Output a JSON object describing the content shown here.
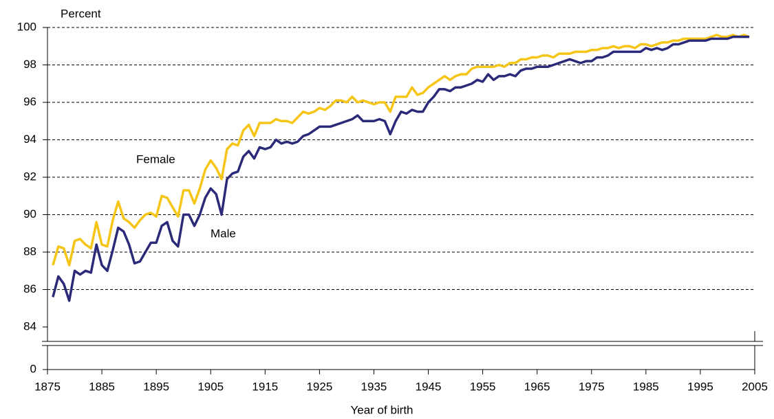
{
  "chart_data": {
    "type": "line",
    "y_axis_label": "Percent",
    "x_axis_label": "Year of birth",
    "x": [
      1876,
      1877,
      1878,
      1879,
      1880,
      1881,
      1882,
      1883,
      1884,
      1885,
      1886,
      1887,
      1888,
      1889,
      1890,
      1891,
      1892,
      1893,
      1894,
      1895,
      1896,
      1897,
      1898,
      1899,
      1900,
      1901,
      1902,
      1903,
      1904,
      1905,
      1906,
      1907,
      1908,
      1909,
      1910,
      1911,
      1912,
      1913,
      1914,
      1915,
      1916,
      1917,
      1918,
      1919,
      1920,
      1921,
      1922,
      1923,
      1924,
      1925,
      1926,
      1927,
      1928,
      1929,
      1930,
      1931,
      1932,
      1933,
      1934,
      1935,
      1936,
      1937,
      1938,
      1939,
      1940,
      1941,
      1942,
      1943,
      1944,
      1945,
      1946,
      1947,
      1948,
      1949,
      1950,
      1951,
      1952,
      1953,
      1954,
      1955,
      1956,
      1957,
      1958,
      1959,
      1960,
      1961,
      1962,
      1963,
      1964,
      1965,
      1966,
      1967,
      1968,
      1969,
      1970,
      1971,
      1972,
      1973,
      1974,
      1975,
      1976,
      1977,
      1978,
      1979,
      1980,
      1981,
      1982,
      1983,
      1984,
      1985,
      1986,
      1987,
      1988,
      1989,
      1990,
      1991,
      1992,
      1993,
      1994,
      1995,
      1996,
      1997,
      1998,
      1999,
      2000,
      2001,
      2002,
      2003,
      2004
    ],
    "series": [
      {
        "name": "Female",
        "color": "#f5c518",
        "values": [
          87.3,
          88.3,
          88.2,
          87.3,
          88.6,
          88.7,
          88.4,
          88.2,
          89.6,
          88.4,
          88.3,
          89.7,
          90.7,
          89.8,
          89.6,
          89.3,
          89.7,
          90.0,
          90.1,
          89.9,
          91.0,
          90.9,
          90.4,
          89.9,
          91.3,
          91.3,
          90.6,
          91.4,
          92.4,
          92.9,
          92.5,
          91.9,
          93.5,
          93.8,
          93.7,
          94.5,
          94.8,
          94.2,
          94.9,
          94.9,
          94.9,
          95.1,
          95.0,
          95.0,
          94.9,
          95.2,
          95.5,
          95.4,
          95.5,
          95.7,
          95.6,
          95.8,
          96.1,
          96.1,
          96.0,
          96.3,
          96.0,
          96.1,
          96.0,
          95.9,
          96.0,
          96.0,
          95.5,
          96.3,
          96.3,
          96.3,
          96.8,
          96.4,
          96.5,
          96.8,
          97.0,
          97.2,
          97.4,
          97.2,
          97.4,
          97.5,
          97.5,
          97.8,
          97.9,
          97.9,
          97.9,
          97.9,
          98.0,
          97.9,
          98.1,
          98.1,
          98.3,
          98.3,
          98.4,
          98.4,
          98.5,
          98.5,
          98.4,
          98.6,
          98.6,
          98.6,
          98.7,
          98.7,
          98.7,
          98.8,
          98.8,
          98.9,
          98.9,
          99.0,
          98.9,
          99.0,
          99.0,
          98.9,
          99.1,
          99.1,
          99.0,
          99.1,
          99.2,
          99.2,
          99.3,
          99.3,
          99.4,
          99.4,
          99.4,
          99.4,
          99.4,
          99.5,
          99.6,
          99.5,
          99.5,
          99.6,
          99.5,
          99.6,
          99.5
        ]
      },
      {
        "name": "Male",
        "color": "#2b2a78",
        "values": [
          85.6,
          86.7,
          86.3,
          85.4,
          87.0,
          86.8,
          87.0,
          86.9,
          88.4,
          87.3,
          87.0,
          88.1,
          89.3,
          89.1,
          88.4,
          87.4,
          87.5,
          88.0,
          88.5,
          88.5,
          89.4,
          89.6,
          88.6,
          88.3,
          90.0,
          90.0,
          89.4,
          90.0,
          90.9,
          91.4,
          91.1,
          90.0,
          91.9,
          92.2,
          92.3,
          93.1,
          93.4,
          93.0,
          93.6,
          93.5,
          93.6,
          94.0,
          93.8,
          93.9,
          93.8,
          93.9,
          94.2,
          94.3,
          94.5,
          94.7,
          94.7,
          94.7,
          94.8,
          94.9,
          95.0,
          95.1,
          95.3,
          95.0,
          95.0,
          95.0,
          95.1,
          95.0,
          94.3,
          95.0,
          95.5,
          95.4,
          95.6,
          95.5,
          95.5,
          96.0,
          96.3,
          96.7,
          96.7,
          96.6,
          96.8,
          96.8,
          96.9,
          97.0,
          97.2,
          97.1,
          97.5,
          97.2,
          97.4,
          97.4,
          97.5,
          97.4,
          97.7,
          97.8,
          97.8,
          97.9,
          97.9,
          97.9,
          98.0,
          98.1,
          98.2,
          98.3,
          98.2,
          98.1,
          98.2,
          98.2,
          98.4,
          98.4,
          98.5,
          98.7,
          98.7,
          98.7,
          98.7,
          98.7,
          98.7,
          98.9,
          98.8,
          98.9,
          98.8,
          98.9,
          99.1,
          99.1,
          99.2,
          99.3,
          99.3,
          99.3,
          99.3,
          99.4,
          99.4,
          99.4,
          99.4,
          99.5,
          99.5,
          99.5,
          99.5
        ]
      }
    ],
    "xlim": [
      1875,
      2005
    ],
    "xticks": [
      1875,
      1885,
      1895,
      1905,
      1915,
      1925,
      1935,
      1945,
      1955,
      1965,
      1975,
      1985,
      1995,
      2005
    ],
    "ylim": [
      83,
      100
    ],
    "yticks": [
      0,
      84,
      86,
      88,
      90,
      92,
      94,
      96,
      98,
      100
    ],
    "y_axis_break": true,
    "grid": true
  }
}
